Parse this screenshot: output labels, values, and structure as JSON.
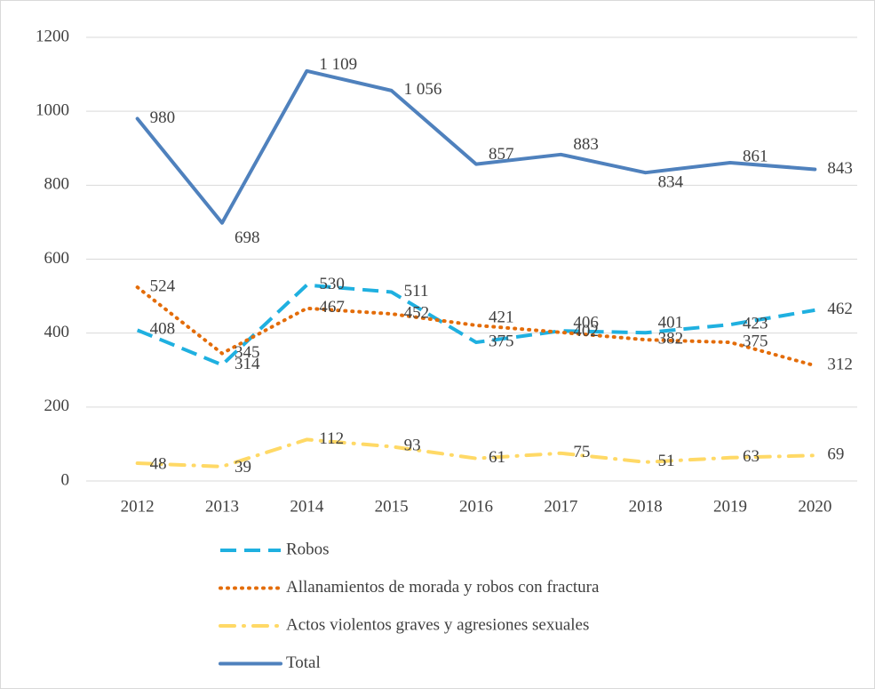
{
  "chart_data": {
    "type": "line",
    "categories": [
      "2012",
      "2013",
      "2014",
      "2015",
      "2016",
      "2017",
      "2018",
      "2019",
      "2020"
    ],
    "series": [
      {
        "name": "Robos",
        "color": "#1fb0e0",
        "values": [
          408,
          314,
          530,
          511,
          375,
          406,
          401,
          423,
          462
        ]
      },
      {
        "name": "Allanamientos de morada y robos con fractura",
        "color": "#e36c09",
        "values": [
          524,
          345,
          467,
          452,
          421,
          402,
          382,
          375,
          312
        ]
      },
      {
        "name": "Actos violentos graves y agresiones sexuales",
        "color": "#ffd966",
        "values": [
          48,
          39,
          112,
          93,
          61,
          75,
          51,
          63,
          69
        ]
      },
      {
        "name": "Total",
        "color": "#4f81bd",
        "values": [
          980,
          698,
          1109,
          1056,
          857,
          883,
          834,
          861,
          843
        ],
        "value_labels": [
          "980",
          "698",
          "1 109",
          "1 056",
          "857",
          "883",
          "834",
          "861",
          "843"
        ]
      }
    ],
    "ylim": [
      0,
      1200
    ],
    "yticks": [
      0,
      200,
      400,
      600,
      800,
      1000,
      1200
    ],
    "grid": true,
    "legend": "bottom"
  }
}
